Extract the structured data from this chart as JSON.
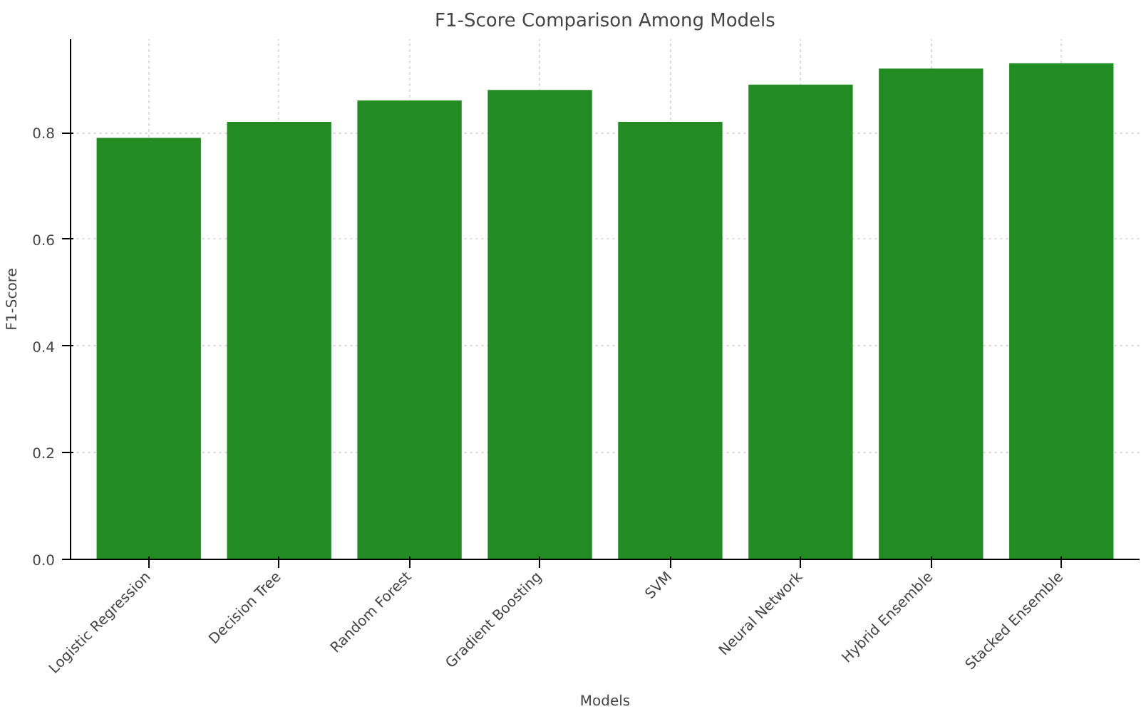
{
  "chart_data": {
    "type": "bar",
    "title": "F1-Score Comparison Among Models",
    "xlabel": "Models",
    "ylabel": "F1-Score",
    "categories": [
      "Logistic Regression",
      "Decision Tree",
      "Random Forest",
      "Gradient Boosting",
      "SVM",
      "Neural Network",
      "Hybrid Ensemble",
      "Stacked Ensemble"
    ],
    "values": [
      0.79,
      0.82,
      0.86,
      0.88,
      0.82,
      0.89,
      0.92,
      0.93
    ],
    "color": "#228b22",
    "ylim": [
      0,
      0.975
    ],
    "yticks": [
      {
        "value": 0,
        "label": "0.0"
      },
      {
        "value": 0.2,
        "label": "0.2"
      },
      {
        "value": 0.4,
        "label": "0.4"
      },
      {
        "value": 0.6,
        "label": "0.6"
      },
      {
        "value": 0.8,
        "label": "0.8"
      }
    ],
    "grid": true
  }
}
